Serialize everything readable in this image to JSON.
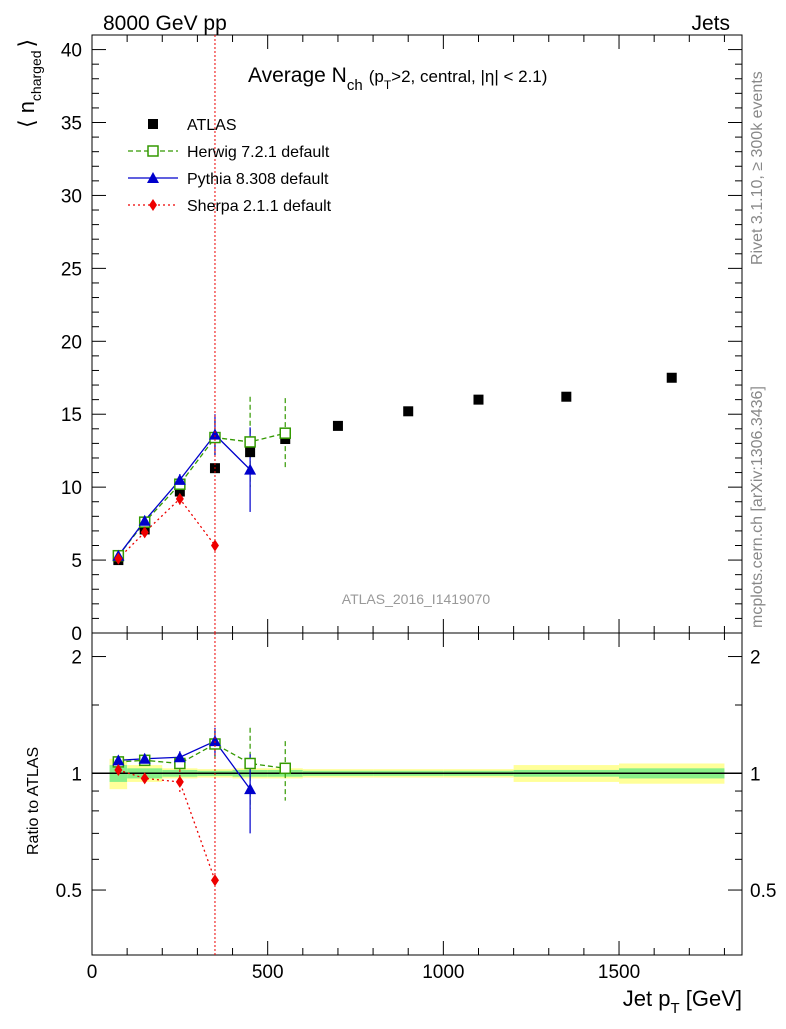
{
  "header": {
    "left": "8000 GeV pp",
    "right": "Jets"
  },
  "side_labels": {
    "rivet": "Rivet 3.1.10, ≥ 300k events",
    "mcplots": "mcplots.cern.ch [arXiv:1306.3436]"
  },
  "watermark": "ATLAS_2016_I1419070",
  "chart_data": {
    "type": "scatter",
    "title_main": "Average N",
    "title_sub": "ch",
    "title_rest_1": "(p",
    "title_rest_sub": "T",
    "title_rest_2": ">2, central, |η| < 2.1)",
    "xlabel_main": "Jet p",
    "xlabel_sub": "T",
    "xlabel_rest": " [GeV]",
    "ylabel_main": "⟨ n",
    "ylabel_sub": "charged",
    "ylabel_close": "⟩",
    "ratio_ylabel": "Ratio to ATLAS",
    "xlim": [
      0,
      1850
    ],
    "ylim_main": [
      0,
      41
    ],
    "ylim_ratio": [
      0.34,
      2.3
    ],
    "x_ticks": [
      0,
      500,
      1000,
      1500
    ],
    "x_tick_labels": [
      "0",
      "500",
      "1000",
      "1500"
    ],
    "y_ticks_main": [
      0,
      5,
      10,
      15,
      20,
      25,
      30,
      35,
      40
    ],
    "y_tick_labels_main": [
      "0",
      "5",
      "10",
      "15",
      "20",
      "25",
      "30",
      "35",
      "40"
    ],
    "y_ticks_ratio": [
      0.5,
      1,
      2
    ],
    "y_tick_labels_ratio": [
      "0.5",
      "1",
      "2"
    ],
    "marker_line_x": 350,
    "legend_position": "top-left",
    "atlas": {
      "name": "ATLAS",
      "color": "#000000",
      "bins": [
        [
          50,
          100
        ],
        [
          100,
          200
        ],
        [
          200,
          300
        ],
        [
          300,
          400
        ],
        [
          400,
          500
        ],
        [
          500,
          600
        ],
        [
          600,
          800
        ],
        [
          800,
          1000
        ],
        [
          1000,
          1200
        ],
        [
          1200,
          1500
        ],
        [
          1500,
          1800
        ]
      ],
      "x": [
        75,
        150,
        250,
        350,
        450,
        550,
        700,
        900,
        1100,
        1350,
        1650
      ],
      "y": [
        5.0,
        7.1,
        9.7,
        11.3,
        12.4,
        13.3,
        14.2,
        15.2,
        16.0,
        16.2,
        17.5
      ],
      "band_stat_frac": [
        0.05,
        0.03,
        0.02,
        0.015,
        0.02,
        0.02,
        0.015,
        0.015,
        0.015,
        0.02,
        0.03
      ],
      "band_total_frac": [
        0.09,
        0.05,
        0.03,
        0.025,
        0.03,
        0.03,
        0.025,
        0.025,
        0.025,
        0.05,
        0.06
      ]
    },
    "series": [
      {
        "name": "Herwig 7.2.1 default",
        "color": "#339900",
        "marker": "open-square",
        "dash": "5,3",
        "x": [
          75,
          150,
          250,
          350,
          450,
          550
        ],
        "y": [
          5.3,
          7.6,
          10.2,
          13.4,
          13.1,
          13.7
        ],
        "err": [
          0.3,
          0.3,
          0.5,
          1.2,
          3.1,
          2.4
        ],
        "ratio": [
          1.07,
          1.08,
          1.06,
          1.19,
          1.06,
          1.03
        ],
        "ratio_err": [
          0.04,
          0.03,
          0.04,
          0.1,
          0.25,
          0.18
        ]
      },
      {
        "name": "Pythia 8.308 default",
        "color": "#0000cc",
        "marker": "filled-triangle",
        "dash": "",
        "x": [
          75,
          150,
          250,
          350,
          450
        ],
        "y": [
          5.3,
          7.7,
          10.5,
          13.6,
          11.2
        ],
        "err": [
          0.2,
          0.3,
          0.4,
          1.4,
          2.9
        ],
        "ratio": [
          1.08,
          1.09,
          1.1,
          1.21,
          0.91
        ],
        "ratio_err": [
          0.03,
          0.03,
          0.04,
          0.1,
          0.21
        ]
      },
      {
        "name": "Sherpa 2.1.1 default",
        "color": "#ee0000",
        "marker": "filled-diamond",
        "dash": "2,3",
        "x": [
          75,
          150,
          250,
          350
        ],
        "y": [
          5.1,
          6.9,
          9.2,
          6.0
        ],
        "err": [
          0.2,
          0.2,
          0.4,
          0.2
        ],
        "ratio": [
          1.02,
          0.97,
          0.95,
          0.53
        ],
        "ratio_err": [
          0.03,
          0.02,
          0.07,
          0.0
        ]
      }
    ]
  }
}
